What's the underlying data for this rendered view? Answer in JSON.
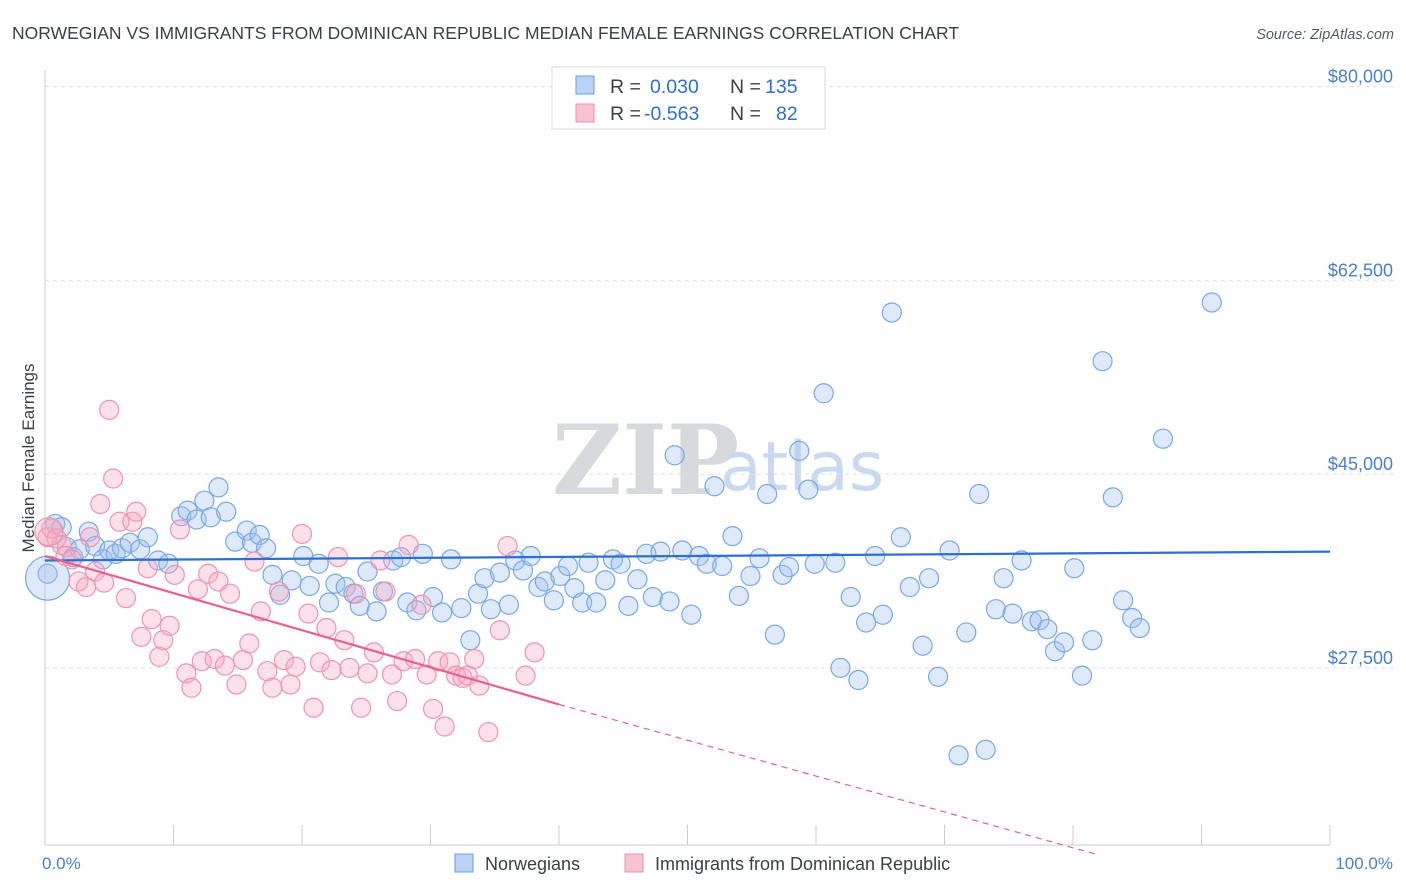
{
  "title": "NORWEGIAN VS IMMIGRANTS FROM DOMINICAN REPUBLIC MEDIAN FEMALE EARNINGS CORRELATION CHART",
  "source": "Source: ZipAtlas.com",
  "watermark": {
    "zip": "ZIP",
    "atlas": "atlas"
  },
  "legend_top": [
    {
      "r_label": "R =",
      "r_value": "0.030",
      "n_label": "N =",
      "n_value": "135",
      "fill": "#b9d2f5",
      "stroke": "#6a9de0"
    },
    {
      "r_label": "R =",
      "r_value": "-0.563",
      "n_label": "N =",
      "n_value": "82",
      "fill": "#f7c3d3",
      "stroke": "#ec8fab"
    }
  ],
  "legend_bottom": [
    {
      "label": "Norwegians",
      "fill": "#b9d2f5",
      "stroke": "#6a9de0"
    },
    {
      "label": "Immigrants from Dominican Republic",
      "fill": "#f7c3d3",
      "stroke": "#ec8fab"
    }
  ],
  "colors": {
    "blue_point_fill": "rgba(160,194,240,0.35)",
    "blue_point_stroke": "#7aa8e4",
    "blue_line": "#2f6fcf",
    "pink_point_fill": "rgba(245,170,195,0.35)",
    "pink_point_stroke": "#ee93b0",
    "pink_line": "#e8608c",
    "grid": "#dde0e4",
    "axis": "#c8ccd0"
  },
  "chart_data": {
    "type": "scatter",
    "title": "NORWEGIAN VS IMMIGRANTS FROM DOMINICAN REPUBLIC MEDIAN FEMALE EARNINGS CORRELATION CHART",
    "xlabel": "",
    "ylabel": "Median Female Earnings",
    "x_tick_labels": [
      "0.0%",
      "100.0%"
    ],
    "y_ticks": [
      27500,
      45000,
      62500,
      80000
    ],
    "y_tick_labels": [
      "$27,500",
      "$45,000",
      "$62,500",
      "$80,000"
    ],
    "xlim": [
      0,
      100
    ],
    "ylim": [
      11500,
      81500
    ],
    "grid": true,
    "legend_position": "top-center",
    "series": [
      {
        "name": "Norwegians",
        "r": 0.03,
        "n": 135,
        "trend": {
          "x": [
            0,
            100
          ],
          "y": [
            37200,
            38000
          ]
        },
        "points": [
          [
            0.2,
            36000
          ],
          [
            0.8,
            40500
          ],
          [
            1.3,
            40200
          ],
          [
            1.7,
            38400
          ],
          [
            2.2,
            37500
          ],
          [
            2.7,
            38200
          ],
          [
            3.4,
            39800
          ],
          [
            3.9,
            38500
          ],
          [
            4.5,
            37300
          ],
          [
            5.0,
            38100
          ],
          [
            5.5,
            37800
          ],
          [
            6.0,
            38300
          ],
          [
            6.6,
            38800
          ],
          [
            7.4,
            38200
          ],
          [
            8.0,
            39300
          ],
          [
            8.8,
            37200
          ],
          [
            9.6,
            36900
          ],
          [
            10.6,
            41200
          ],
          [
            11.1,
            41700
          ],
          [
            11.8,
            40900
          ],
          [
            12.4,
            42600
          ],
          [
            12.9,
            41100
          ],
          [
            13.5,
            43800
          ],
          [
            14.1,
            41600
          ],
          [
            14.8,
            38900
          ],
          [
            15.7,
            39900
          ],
          [
            16.1,
            38800
          ],
          [
            16.7,
            39500
          ],
          [
            17.2,
            38300
          ],
          [
            17.7,
            35900
          ],
          [
            18.3,
            34100
          ],
          [
            19.2,
            35400
          ],
          [
            20.1,
            37600
          ],
          [
            20.6,
            34900
          ],
          [
            21.3,
            36900
          ],
          [
            22.1,
            33400
          ],
          [
            22.6,
            35100
          ],
          [
            23.4,
            34800
          ],
          [
            24.0,
            34200
          ],
          [
            24.5,
            33100
          ],
          [
            25.1,
            36200
          ],
          [
            25.8,
            32600
          ],
          [
            26.3,
            34400
          ],
          [
            27.1,
            37200
          ],
          [
            27.7,
            37500
          ],
          [
            28.2,
            33400
          ],
          [
            28.9,
            32700
          ],
          [
            29.4,
            37800
          ],
          [
            30.2,
            33900
          ],
          [
            30.9,
            32500
          ],
          [
            31.6,
            37300
          ],
          [
            32.4,
            32900
          ],
          [
            33.1,
            30000
          ],
          [
            33.7,
            34200
          ],
          [
            34.2,
            35600
          ],
          [
            34.7,
            32800
          ],
          [
            35.4,
            36100
          ],
          [
            36.1,
            33200
          ],
          [
            36.6,
            37200
          ],
          [
            37.2,
            36300
          ],
          [
            37.8,
            37600
          ],
          [
            38.4,
            34800
          ],
          [
            38.9,
            35300
          ],
          [
            39.6,
            33600
          ],
          [
            40.1,
            35800
          ],
          [
            40.7,
            36700
          ],
          [
            41.2,
            34700
          ],
          [
            41.8,
            33400
          ],
          [
            42.3,
            37000
          ],
          [
            42.9,
            33400
          ],
          [
            43.6,
            35400
          ],
          [
            44.2,
            37300
          ],
          [
            44.8,
            36900
          ],
          [
            45.4,
            33100
          ],
          [
            46.1,
            35500
          ],
          [
            46.8,
            37800
          ],
          [
            47.3,
            33900
          ],
          [
            47.9,
            38000
          ],
          [
            48.6,
            33500
          ],
          [
            49.0,
            46700
          ],
          [
            49.6,
            38100
          ],
          [
            50.3,
            32300
          ],
          [
            50.9,
            37600
          ],
          [
            51.5,
            36900
          ],
          [
            52.1,
            43900
          ],
          [
            52.7,
            36700
          ],
          [
            53.5,
            39400
          ],
          [
            54.0,
            34000
          ],
          [
            54.9,
            35800
          ],
          [
            55.6,
            37400
          ],
          [
            56.2,
            43200
          ],
          [
            56.8,
            30500
          ],
          [
            57.4,
            35900
          ],
          [
            57.9,
            36600
          ],
          [
            58.7,
            47100
          ],
          [
            59.4,
            43600
          ],
          [
            59.9,
            36900
          ],
          [
            60.6,
            52300
          ],
          [
            61.5,
            37000
          ],
          [
            61.9,
            27500
          ],
          [
            62.7,
            33900
          ],
          [
            63.3,
            26400
          ],
          [
            63.9,
            31600
          ],
          [
            64.6,
            37600
          ],
          [
            65.2,
            32300
          ],
          [
            65.9,
            59600
          ],
          [
            66.6,
            39300
          ],
          [
            67.3,
            34800
          ],
          [
            68.3,
            29500
          ],
          [
            68.8,
            35600
          ],
          [
            69.5,
            26700
          ],
          [
            70.4,
            38100
          ],
          [
            71.1,
            19600
          ],
          [
            71.7,
            30700
          ],
          [
            72.7,
            43200
          ],
          [
            73.2,
            20100
          ],
          [
            74.0,
            32800
          ],
          [
            74.6,
            35600
          ],
          [
            75.3,
            32400
          ],
          [
            76.0,
            37200
          ],
          [
            76.8,
            31700
          ],
          [
            77.4,
            31800
          ],
          [
            78.0,
            31000
          ],
          [
            78.6,
            29000
          ],
          [
            79.3,
            29800
          ],
          [
            80.1,
            36500
          ],
          [
            80.7,
            26800
          ],
          [
            81.5,
            30000
          ],
          [
            82.3,
            55200
          ],
          [
            83.1,
            42900
          ],
          [
            83.9,
            33600
          ],
          [
            84.6,
            32000
          ],
          [
            85.2,
            31100
          ],
          [
            87.0,
            48200
          ],
          [
            90.8,
            60500
          ]
        ]
      },
      {
        "name": "Immigrants from Dominican Republic",
        "r": -0.563,
        "n": 82,
        "trend": {
          "x": [
            0,
            40
          ],
          "y": [
            37600,
            24200
          ]
        },
        "trend_dashed": {
          "x": [
            40,
            82
          ],
          "y": [
            24200,
            10600
          ]
        },
        "points": [
          [
            0.2,
            39300
          ],
          [
            0.5,
            40100
          ],
          [
            0.9,
            39200
          ],
          [
            1.3,
            38600
          ],
          [
            1.6,
            37600
          ],
          [
            2.1,
            37300
          ],
          [
            2.6,
            35300
          ],
          [
            3.2,
            34800
          ],
          [
            3.5,
            39300
          ],
          [
            3.9,
            36200
          ],
          [
            4.3,
            42300
          ],
          [
            4.6,
            35200
          ],
          [
            5.0,
            50800
          ],
          [
            5.3,
            44600
          ],
          [
            5.8,
            40700
          ],
          [
            6.3,
            33800
          ],
          [
            6.8,
            40700
          ],
          [
            7.1,
            41600
          ],
          [
            7.5,
            30300
          ],
          [
            8.0,
            36500
          ],
          [
            8.3,
            31900
          ],
          [
            8.9,
            28500
          ],
          [
            9.2,
            30000
          ],
          [
            9.7,
            31300
          ],
          [
            10.1,
            35900
          ],
          [
            10.5,
            40000
          ],
          [
            11.0,
            27000
          ],
          [
            11.4,
            25700
          ],
          [
            11.9,
            34600
          ],
          [
            12.2,
            28100
          ],
          [
            12.7,
            36000
          ],
          [
            13.2,
            28300
          ],
          [
            13.5,
            35300
          ],
          [
            14.0,
            27700
          ],
          [
            14.4,
            34200
          ],
          [
            14.9,
            26000
          ],
          [
            15.4,
            28200
          ],
          [
            15.9,
            29700
          ],
          [
            16.3,
            37100
          ],
          [
            16.8,
            32600
          ],
          [
            17.3,
            27200
          ],
          [
            17.7,
            25700
          ],
          [
            18.2,
            34400
          ],
          [
            18.6,
            28200
          ],
          [
            19.1,
            26000
          ],
          [
            19.5,
            27600
          ],
          [
            20.0,
            39600
          ],
          [
            20.5,
            32400
          ],
          [
            20.9,
            23900
          ],
          [
            21.4,
            28000
          ],
          [
            21.9,
            31100
          ],
          [
            22.3,
            27300
          ],
          [
            22.8,
            37500
          ],
          [
            23.3,
            30000
          ],
          [
            23.7,
            27500
          ],
          [
            24.2,
            34200
          ],
          [
            24.6,
            23900
          ],
          [
            25.1,
            27000
          ],
          [
            25.6,
            28900
          ],
          [
            26.1,
            37200
          ],
          [
            26.5,
            34400
          ],
          [
            27.0,
            26900
          ],
          [
            27.4,
            24500
          ],
          [
            27.9,
            28100
          ],
          [
            28.3,
            38600
          ],
          [
            28.8,
            28300
          ],
          [
            29.3,
            33200
          ],
          [
            29.7,
            26900
          ],
          [
            30.2,
            23800
          ],
          [
            30.6,
            28100
          ],
          [
            31.1,
            22200
          ],
          [
            31.5,
            28000
          ],
          [
            32.0,
            26800
          ],
          [
            32.5,
            26600
          ],
          [
            32.9,
            26800
          ],
          [
            33.4,
            28300
          ],
          [
            33.8,
            25900
          ],
          [
            34.5,
            21700
          ],
          [
            35.4,
            30900
          ],
          [
            36.0,
            38500
          ],
          [
            37.4,
            26800
          ],
          [
            38.1,
            28900
          ]
        ]
      }
    ]
  }
}
